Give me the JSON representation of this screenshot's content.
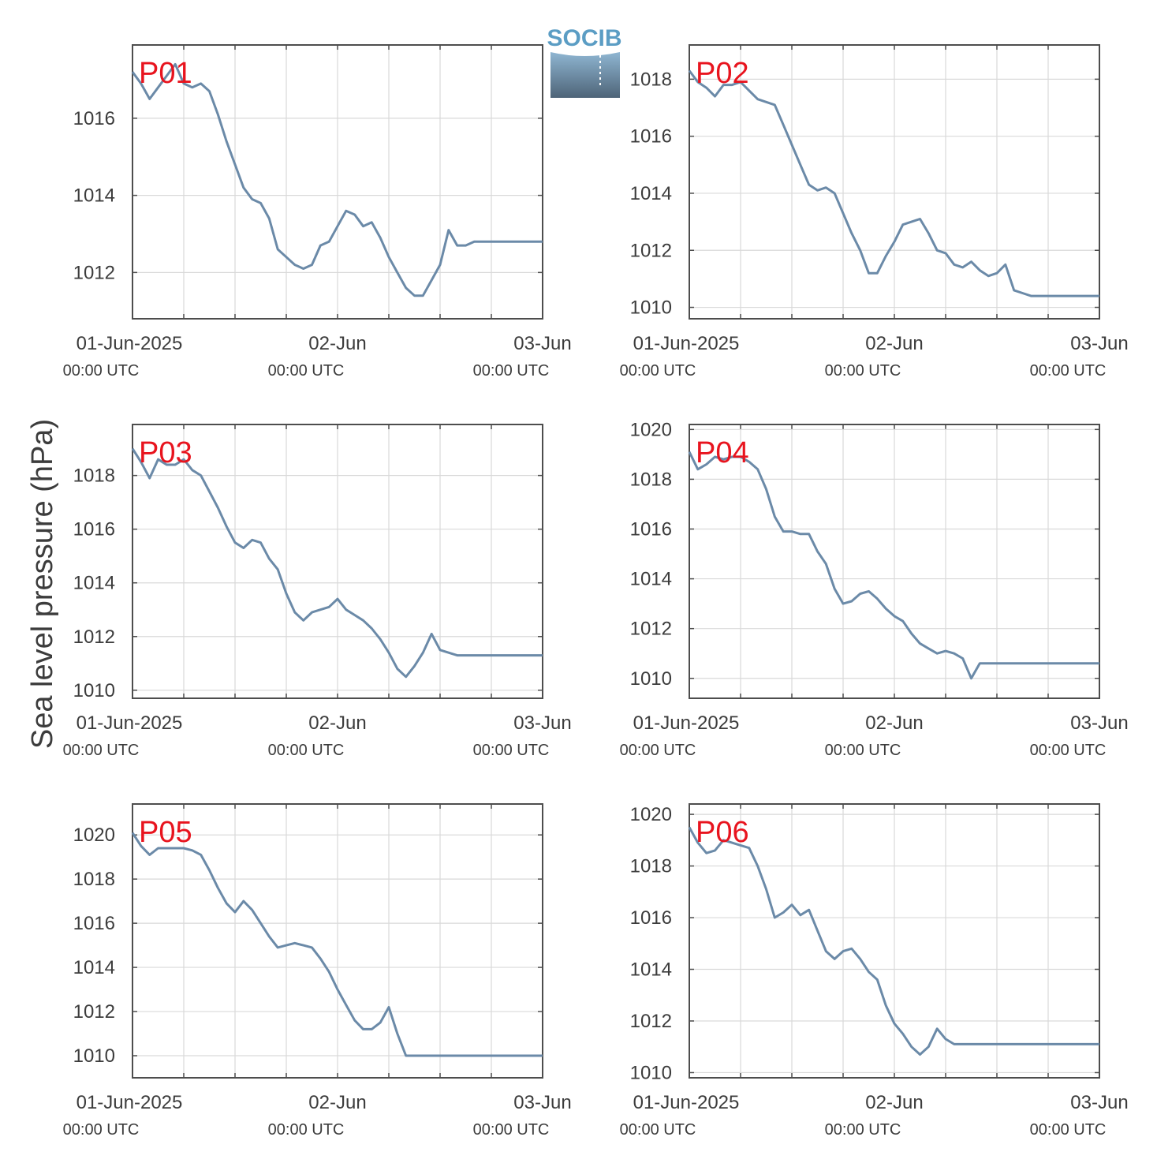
{
  "logo": {
    "text": "SOCIB",
    "color": "#5b9dc4"
  },
  "ylabel": "Sea level pressure (hPa)",
  "colors": {
    "series": "#6b8aa8",
    "panel_tag": "#e8141e",
    "grid": "#d9d9d9",
    "axis": "#4d4d4d"
  },
  "x_ticks": [
    {
      "date": "01-Jun-2025",
      "time": "00:00 UTC"
    },
    {
      "date": "02-Jun",
      "time": "00:00 UTC"
    },
    {
      "date": "03-Jun",
      "time": "00:00 UTC"
    }
  ],
  "chart_data": [
    {
      "type": "line",
      "label": "P01",
      "xlim": [
        0,
        48
      ],
      "ylim": [
        1010.8,
        1017.9
      ],
      "yticks": [
        1012,
        1014,
        1016
      ],
      "x": [
        0,
        1,
        2,
        3,
        4,
        5,
        6,
        7,
        8,
        9,
        10,
        11,
        12,
        13,
        14,
        15,
        16,
        17,
        18,
        19,
        20,
        21,
        22,
        23,
        24,
        25,
        26,
        27,
        28,
        29,
        30,
        31,
        32,
        33,
        34,
        35,
        36,
        37,
        38,
        39,
        40,
        41,
        42,
        43,
        44,
        45,
        46,
        47,
        48
      ],
      "values": [
        1017.2,
        1016.9,
        1016.5,
        1016.8,
        1017.1,
        1017.4,
        1016.9,
        1016.8,
        1016.9,
        1016.7,
        1016.1,
        1015.4,
        1014.8,
        1014.2,
        1013.9,
        1013.8,
        1013.4,
        1012.6,
        1012.4,
        1012.2,
        1012.1,
        1012.2,
        1012.7,
        1012.8,
        1013.2,
        1013.6,
        1013.5,
        1013.2,
        1013.3,
        1012.9,
        1012.4,
        1012.0,
        1011.6,
        1011.4,
        1011.4,
        1011.8,
        1012.2,
        1013.1,
        1012.7,
        1012.7,
        1012.8,
        1012.8,
        1012.8,
        1012.8,
        1012.8,
        1012.8,
        1012.8,
        1012.8,
        1012.8
      ]
    },
    {
      "type": "line",
      "label": "P02",
      "xlim": [
        0,
        48
      ],
      "ylim": [
        1009.6,
        1019.2
      ],
      "yticks": [
        1010,
        1012,
        1014,
        1016,
        1018
      ],
      "x": [
        0,
        1,
        2,
        3,
        4,
        5,
        6,
        7,
        8,
        9,
        10,
        11,
        12,
        13,
        14,
        15,
        16,
        17,
        18,
        19,
        20,
        21,
        22,
        23,
        24,
        25,
        26,
        27,
        28,
        29,
        30,
        31,
        32,
        33,
        34,
        35,
        36,
        37,
        38,
        39,
        40,
        41,
        42,
        43,
        44,
        45,
        46,
        47,
        48
      ],
      "values": [
        1018.3,
        1017.9,
        1017.7,
        1017.4,
        1017.8,
        1017.8,
        1017.9,
        1017.6,
        1017.3,
        1017.2,
        1017.1,
        1016.4,
        1015.7,
        1015.0,
        1014.3,
        1014.1,
        1014.2,
        1014.0,
        1013.3,
        1012.6,
        1012.0,
        1011.2,
        1011.2,
        1011.8,
        1012.3,
        1012.9,
        1013.0,
        1013.1,
        1012.6,
        1012.0,
        1011.9,
        1011.5,
        1011.4,
        1011.6,
        1011.3,
        1011.1,
        1011.2,
        1011.5,
        1010.6,
        1010.5,
        1010.4,
        1010.4,
        1010.4,
        1010.4,
        1010.4,
        1010.4,
        1010.4,
        1010.4,
        1010.4
      ]
    },
    {
      "type": "line",
      "label": "P03",
      "xlim": [
        0,
        48
      ],
      "ylim": [
        1009.7,
        1019.9
      ],
      "yticks": [
        1010,
        1012,
        1014,
        1016,
        1018
      ],
      "x": [
        0,
        1,
        2,
        3,
        4,
        5,
        6,
        7,
        8,
        9,
        10,
        11,
        12,
        13,
        14,
        15,
        16,
        17,
        18,
        19,
        20,
        21,
        22,
        23,
        24,
        25,
        26,
        27,
        28,
        29,
        30,
        31,
        32,
        33,
        34,
        35,
        36,
        37,
        38,
        39,
        40,
        41,
        42,
        43,
        44,
        45,
        46,
        47,
        48
      ],
      "values": [
        1019.0,
        1018.5,
        1017.9,
        1018.6,
        1018.4,
        1018.4,
        1018.6,
        1018.2,
        1018.0,
        1017.4,
        1016.8,
        1016.1,
        1015.5,
        1015.3,
        1015.6,
        1015.5,
        1014.9,
        1014.5,
        1013.6,
        1012.9,
        1012.6,
        1012.9,
        1013.0,
        1013.1,
        1013.4,
        1013.0,
        1012.8,
        1012.6,
        1012.3,
        1011.9,
        1011.4,
        1010.8,
        1010.5,
        1010.9,
        1011.4,
        1012.1,
        1011.5,
        1011.4,
        1011.3,
        1011.3,
        1011.3,
        1011.3,
        1011.3,
        1011.3,
        1011.3,
        1011.3,
        1011.3,
        1011.3,
        1011.3
      ]
    },
    {
      "type": "line",
      "label": "P04",
      "xlim": [
        0,
        48
      ],
      "ylim": [
        1009.2,
        1020.2
      ],
      "yticks": [
        1010,
        1012,
        1014,
        1016,
        1018,
        1020
      ],
      "x": [
        0,
        1,
        2,
        3,
        4,
        5,
        6,
        7,
        8,
        9,
        10,
        11,
        12,
        13,
        14,
        15,
        16,
        17,
        18,
        19,
        20,
        21,
        22,
        23,
        24,
        25,
        26,
        27,
        28,
        29,
        30,
        31,
        32,
        33,
        34,
        35,
        36,
        37,
        38,
        39,
        40,
        41,
        42,
        43,
        44,
        45,
        46,
        47,
        48
      ],
      "values": [
        1019.1,
        1018.4,
        1018.6,
        1018.9,
        1018.8,
        1018.9,
        1018.9,
        1018.7,
        1018.4,
        1017.6,
        1016.5,
        1015.9,
        1015.9,
        1015.8,
        1015.8,
        1015.1,
        1014.6,
        1013.6,
        1013.0,
        1013.1,
        1013.4,
        1013.5,
        1013.2,
        1012.8,
        1012.5,
        1012.3,
        1011.8,
        1011.4,
        1011.2,
        1011.0,
        1011.1,
        1011.0,
        1010.8,
        1010.0,
        1010.6,
        1010.6,
        1010.6,
        1010.6,
        1010.6,
        1010.6,
        1010.6,
        1010.6,
        1010.6,
        1010.6,
        1010.6,
        1010.6,
        1010.6,
        1010.6,
        1010.6
      ]
    },
    {
      "type": "line",
      "label": "P05",
      "xlim": [
        0,
        48
      ],
      "ylim": [
        1009.0,
        1021.4
      ],
      "yticks": [
        1010,
        1012,
        1014,
        1016,
        1018,
        1020
      ],
      "x": [
        0,
        1,
        2,
        3,
        4,
        5,
        6,
        7,
        8,
        9,
        10,
        11,
        12,
        13,
        14,
        15,
        16,
        17,
        18,
        19,
        20,
        21,
        22,
        23,
        24,
        25,
        26,
        27,
        28,
        29,
        30,
        31,
        32,
        33,
        34,
        35,
        36,
        37,
        38,
        39,
        40,
        41,
        42,
        43,
        44,
        45,
        46,
        47,
        48
      ],
      "values": [
        1020.1,
        1019.5,
        1019.1,
        1019.4,
        1019.4,
        1019.4,
        1019.4,
        1019.3,
        1019.1,
        1018.4,
        1017.6,
        1016.9,
        1016.5,
        1017.0,
        1016.6,
        1016.0,
        1015.4,
        1014.9,
        1015.0,
        1015.1,
        1015.0,
        1014.9,
        1014.4,
        1013.8,
        1013.0,
        1012.3,
        1011.6,
        1011.2,
        1011.2,
        1011.5,
        1012.2,
        1011.0,
        1010.0,
        1010.0,
        1010.0,
        1010.0,
        1010.0,
        1010.0,
        1010.0,
        1010.0,
        1010.0,
        1010.0,
        1010.0,
        1010.0,
        1010.0,
        1010.0,
        1010.0,
        1010.0,
        1010.0
      ]
    },
    {
      "type": "line",
      "label": "P06",
      "xlim": [
        0,
        48
      ],
      "ylim": [
        1009.8,
        1020.4
      ],
      "yticks": [
        1010,
        1012,
        1014,
        1016,
        1018,
        1020
      ],
      "x": [
        0,
        1,
        2,
        3,
        4,
        5,
        6,
        7,
        8,
        9,
        10,
        11,
        12,
        13,
        14,
        15,
        16,
        17,
        18,
        19,
        20,
        21,
        22,
        23,
        24,
        25,
        26,
        27,
        28,
        29,
        30,
        31,
        32,
        33,
        34,
        35,
        36,
        37,
        38,
        39,
        40,
        41,
        42,
        43,
        44,
        45,
        46,
        47,
        48
      ],
      "values": [
        1019.5,
        1018.9,
        1018.5,
        1018.6,
        1019.0,
        1018.9,
        1018.8,
        1018.7,
        1018.0,
        1017.1,
        1016.0,
        1016.2,
        1016.5,
        1016.1,
        1016.3,
        1015.5,
        1014.7,
        1014.4,
        1014.7,
        1014.8,
        1014.4,
        1013.9,
        1013.6,
        1012.6,
        1011.9,
        1011.5,
        1011.0,
        1010.7,
        1011.0,
        1011.7,
        1011.3,
        1011.1,
        1011.1,
        1011.1,
        1011.1,
        1011.1,
        1011.1,
        1011.1,
        1011.1,
        1011.1,
        1011.1,
        1011.1,
        1011.1,
        1011.1,
        1011.1,
        1011.1,
        1011.1,
        1011.1,
        1011.1
      ]
    }
  ]
}
